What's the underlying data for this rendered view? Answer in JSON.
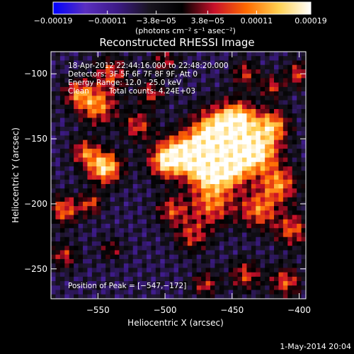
{
  "chart_data": {
    "type": "heatmap",
    "title": "Reconstructed RHESSI Image",
    "xlabel": "Heliocentric X (arcsec)",
    "ylabel": "Heliocentric Y (arcsec)",
    "xlim": [
      -585,
      -395
    ],
    "ylim": [
      -273,
      -83
    ],
    "x_ticks": [
      {
        "value": -550,
        "label": "−550"
      },
      {
        "value": -500,
        "label": "−500"
      },
      {
        "value": -450,
        "label": "−450"
      },
      {
        "value": -400,
        "label": "−400"
      }
    ],
    "y_ticks": [
      {
        "value": -100,
        "label": "−100"
      },
      {
        "value": -150,
        "label": "−150"
      },
      {
        "value": -200,
        "label": "−200"
      },
      {
        "value": -250,
        "label": "−250"
      }
    ],
    "colorbar": {
      "min": -0.00019,
      "max": 0.00019,
      "unit": "(photons cm⁻² s⁻¹ asec⁻²)",
      "ticks": [
        {
          "value": -0.00019,
          "label": "−0.00019"
        },
        {
          "value": -0.00011,
          "label": "−0.00011"
        },
        {
          "value": -3.8e-05,
          "label": "−3.8e−05"
        },
        {
          "value": 3.8e-05,
          "label": "3.8e−05"
        },
        {
          "value": 0.00011,
          "label": "0.00011"
        },
        {
          "value": 0.00019,
          "label": "0.00019"
        }
      ],
      "stops": [
        "#0000ff",
        "#5a2fc0",
        "#3c1a86",
        "#18141e",
        "#000000",
        "#c8102a",
        "#ff6a00",
        "#ffd050",
        "#ffffff"
      ]
    },
    "annotations": {
      "time_range": "18-Apr-2012 22:44:16.000 to 22:48:20.000",
      "detectors": "Detectors: 3F 5F 6F 7F 8F 9F, Att 0",
      "energy": "Energy Range: 12.0 - 25.0 keV",
      "method": "Clean",
      "counts": "Total counts: 4.24E+03",
      "peak": "Position of Peak = [−547,−172]"
    },
    "peak_position": [
      -547,
      -172
    ],
    "grid": false
  },
  "date_stamp": "1-May-2014 20:04"
}
